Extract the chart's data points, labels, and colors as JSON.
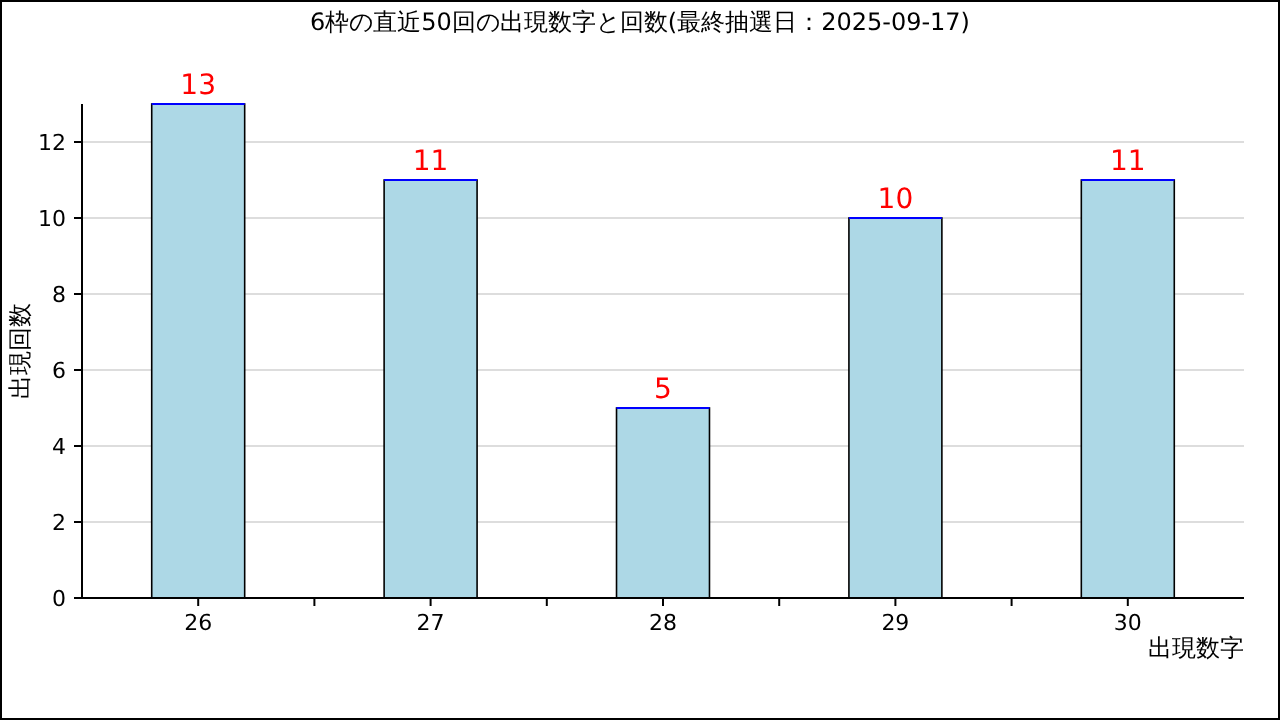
{
  "chart_data": {
    "type": "bar",
    "title": "6枠の直近50回の出現数字と回数(最終抽選日：2025-09-17)",
    "xlabel": "出現数字",
    "ylabel": "出現回数",
    "categories": [
      "26",
      "27",
      "28",
      "29",
      "30"
    ],
    "values": [
      13,
      11,
      5,
      10,
      11
    ],
    "color": "#add8e6",
    "ylim": [
      0,
      13
    ],
    "yticks": [
      0,
      2,
      4,
      6,
      8,
      10,
      12
    ],
    "grid": "y",
    "data_labels": true
  }
}
